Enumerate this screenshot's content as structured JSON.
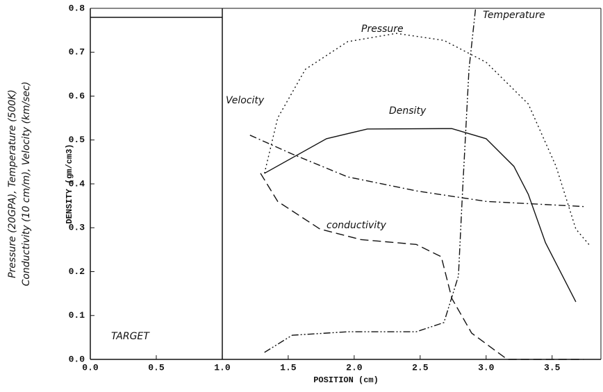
{
  "chart_data": {
    "type": "line",
    "xlabel": "POSITION (cm)",
    "ylabel": "DENSITY (gm/cm3)",
    "ylabel_2": "Pressure (20GPA), Temperature (500K)",
    "ylabel_3": "Conductivity (10 cm/m), Velocity (km/sec)",
    "annotation": "TARGET",
    "xlim": [
      0,
      3.87
    ],
    "ylim": [
      0,
      0.8
    ],
    "xticks": [
      {
        "value": 0,
        "label": "0.0"
      },
      0.5,
      {
        "value": 1,
        "label": "1.0"
      },
      1.5,
      {
        "value": 2,
        "label": "2.0"
      },
      2.5,
      {
        "value": 3,
        "label": "3.0"
      },
      3.5
    ],
    "yticks": [
      {
        "value": 0,
        "label": "0.0"
      },
      0.1,
      0.2,
      0.3,
      0.4,
      0.5,
      0.6,
      0.7,
      0.8
    ],
    "series": [
      {
        "name": "Density",
        "color": "#111111",
        "x": [
          1.32,
          1.79,
          2.1,
          2.74,
          3.0,
          3.21,
          3.32,
          3.45,
          3.68
        ],
        "values": [
          0.424,
          0.503,
          0.525,
          0.526,
          0.503,
          0.44,
          0.376,
          0.266,
          0.131
        ]
      },
      {
        "name": "Pressure",
        "color": "#111111",
        "x": [
          1.32,
          1.42,
          1.63,
          1.95,
          2.32,
          2.68,
          3.0,
          3.32,
          3.53,
          3.68,
          3.79
        ],
        "values": [
          0.424,
          0.55,
          0.661,
          0.724,
          0.743,
          0.727,
          0.677,
          0.582,
          0.44,
          0.297,
          0.258
        ]
      },
      {
        "name": "Velocity",
        "color": "#111111",
        "x": [
          1.21,
          1.53,
          1.95,
          2.47,
          3.0,
          3.76
        ],
        "values": [
          0.511,
          0.468,
          0.416,
          0.384,
          0.36,
          0.348
        ]
      },
      {
        "name": "conductivity",
        "color": "#111111",
        "x": [
          1.29,
          1.42,
          1.74,
          2.05,
          2.47,
          2.66,
          2.74,
          2.89,
          3.16,
          3.74
        ],
        "values": [
          0.424,
          0.36,
          0.297,
          0.273,
          0.262,
          0.234,
          0.139,
          0.06,
          0.0,
          0.0
        ]
      },
      {
        "name": "Temperature",
        "color": "#111111",
        "x": [
          1.32,
          1.53,
          1.95,
          2.47,
          2.68,
          2.79,
          2.82,
          2.87,
          2.92
        ],
        "values": [
          0.016,
          0.055,
          0.063,
          0.063,
          0.084,
          0.19,
          0.376,
          0.661,
          0.8
        ]
      }
    ]
  }
}
